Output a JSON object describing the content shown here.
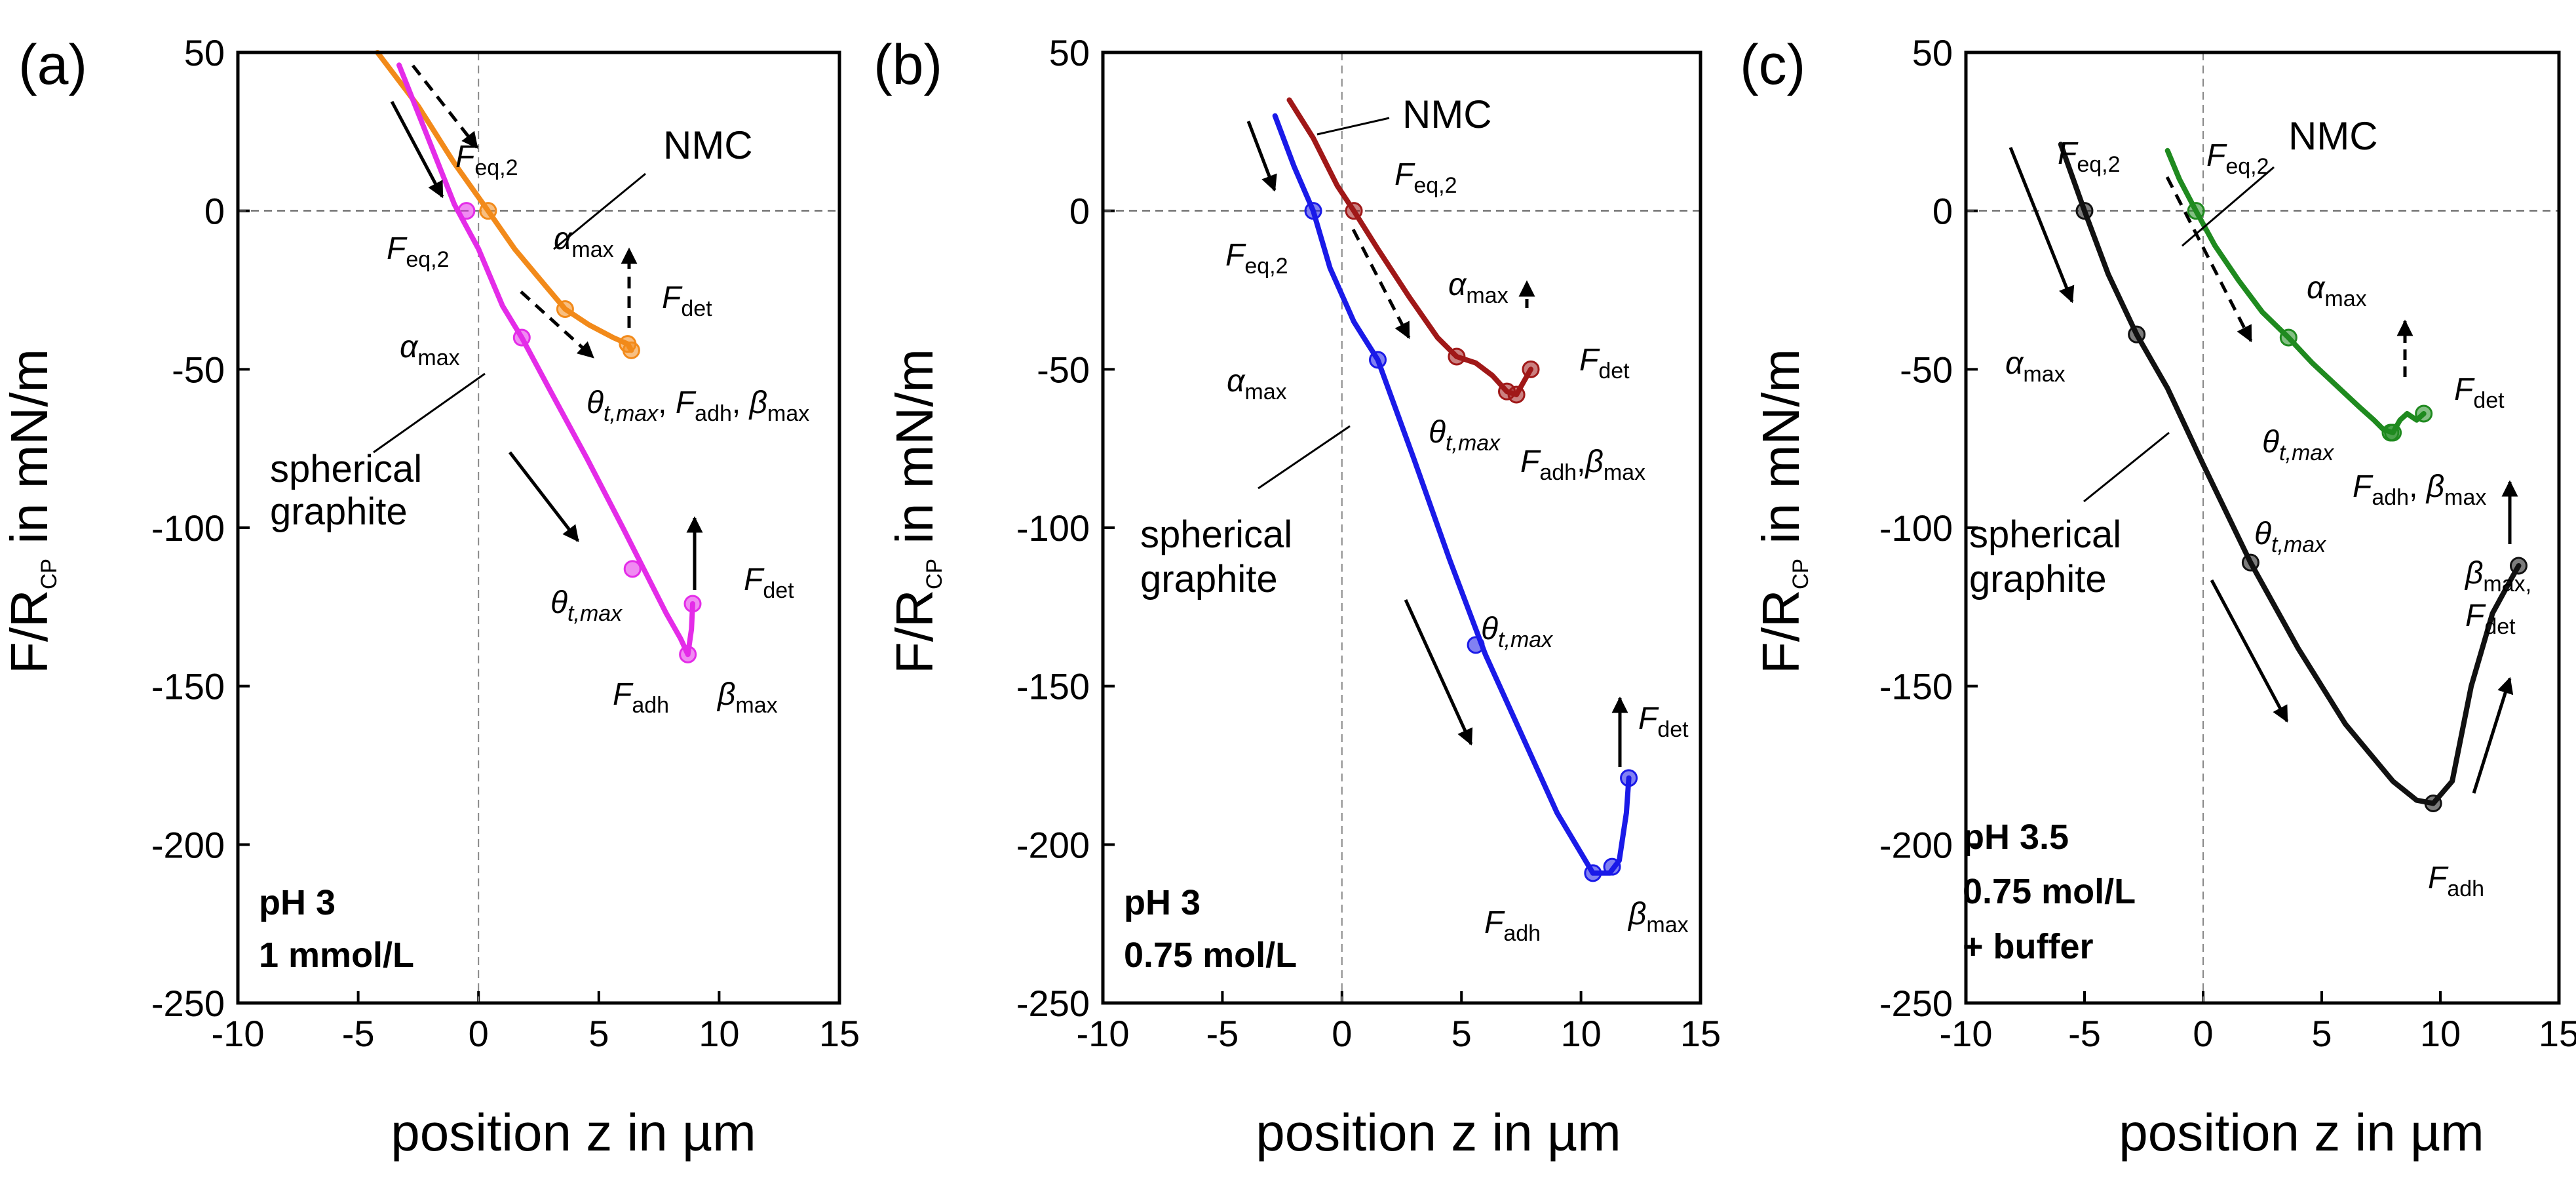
{
  "panels": [
    {
      "letter": "(a)",
      "conditions": [
        "pH 3",
        "1 mmol/L"
      ],
      "labels": {
        "material1": "NMC",
        "material2a": "spherical",
        "material2b": "graphite"
      },
      "colors": {
        "nmc": "#f28a1a",
        "graphite": "#e42ce8",
        "labels": "#e42ce8",
        "nmc_labels": "#f28a1a"
      },
      "nmc_labels": {
        "feq2": "F",
        "feq2_sub": "eq,2",
        "alpha": "α",
        "alpha_sub": "max",
        "fdet": "F",
        "fdet_sub": "det",
        "theta": "θ",
        "theta_sub": "t,max",
        "fadh": "F",
        "fadh_sub": "adh",
        "beta": "β",
        "beta_sub": "max"
      },
      "graphite_labels": {
        "feq2": "F",
        "feq2_sub": "eq,2",
        "alpha": "α",
        "alpha_sub": "max",
        "theta": "θ",
        "theta_sub": "t,max",
        "fdet": "F",
        "fdet_sub": "det",
        "fadh": "F",
        "fadh_sub": "adh",
        "beta": "β",
        "beta_sub": "max"
      }
    },
    {
      "letter": "(b)",
      "conditions": [
        "pH 3",
        "0.75 mol/L"
      ],
      "labels": {
        "material1": "NMC",
        "material2a": "spherical",
        "material2b": "graphite"
      },
      "colors": {
        "nmc": "#a01818",
        "graphite": "#1a1ae8",
        "labels": "#1a1ae8",
        "nmc_labels": "#a01818"
      },
      "nmc_labels": {
        "feq2": "F",
        "feq2_sub": "eq,2",
        "alpha": "α",
        "alpha_sub": "max",
        "fdet": "F",
        "fdet_sub": "det",
        "theta": "θ",
        "theta_sub": "t,max",
        "fadh": "F",
        "fadh_sub": "adh",
        "beta": "β",
        "beta_sub": "max"
      },
      "graphite_labels": {
        "feq2": "F",
        "feq2_sub": "eq,2",
        "alpha": "α",
        "alpha_sub": "max",
        "theta": "θ",
        "theta_sub": "t,max",
        "fdet": "F",
        "fdet_sub": "det",
        "fadh": "F",
        "fadh_sub": "adh",
        "beta": "β",
        "beta_sub": "max"
      }
    },
    {
      "letter": "(c)",
      "conditions": [
        "pH 3.5",
        "0.75 mol/L",
        "+ buffer"
      ],
      "labels": {
        "material1": "NMC",
        "material2a": "spherical",
        "material2b": "graphite"
      },
      "colors": {
        "nmc": "#1f8a1f",
        "graphite": "#111111",
        "labels": "#111111",
        "nmc_labels": "#1f8a1f"
      },
      "nmc_labels": {
        "feq2": "F",
        "feq2_sub": "eq,2",
        "alpha": "α",
        "alpha_sub": "max",
        "fdet": "F",
        "fdet_sub": "det",
        "theta": "θ",
        "theta_sub": "t,max",
        "fadh": "F",
        "fadh_sub": "adh",
        "beta": "β",
        "beta_sub": "max"
      },
      "graphite_labels": {
        "feq2": "F",
        "feq2_sub": "eq,2",
        "alpha": "α",
        "alpha_sub": "max",
        "theta": "θ",
        "theta_sub": "t,max",
        "fdet": "F",
        "fdet_sub": "det",
        "fadh": "F",
        "fadh_sub": "adh",
        "beta": "β",
        "beta_sub": "max,",
        "fdet2": "F",
        "fdet2_sub": "det"
      }
    }
  ],
  "chart_data": [
    {
      "type": "line",
      "title": "(a) pH 3, 1 mmol/L",
      "xlabel": "position z in µm",
      "ylabel": "F/R_CP in mN/m",
      "xlim": [
        -10,
        15
      ],
      "ylim": [
        -250,
        50
      ],
      "xticks": [
        -10,
        -5,
        0,
        5,
        10,
        15
      ],
      "yticks": [
        50,
        0,
        -50,
        -100,
        -150,
        -200,
        -250
      ],
      "series": [
        {
          "name": "NMC",
          "color": "#f28a1a",
          "x": [
            -4.2,
            -2.5,
            -1.0,
            0.4,
            1.5,
            2.6,
            3.6,
            4.6,
            5.6,
            6.2,
            6.35
          ],
          "y": [
            50,
            33,
            15,
            0,
            -12,
            -22,
            -31,
            -36,
            -40,
            -42,
            -44
          ]
        },
        {
          "name": "spherical graphite",
          "color": "#e42ce8",
          "x": [
            -3.3,
            -2.2,
            -1.0,
            0.0,
            1.0,
            1.8,
            3.0,
            4.5,
            6.0,
            7.0,
            7.8,
            8.4,
            8.7,
            8.85,
            8.9
          ],
          "y": [
            46,
            25,
            2,
            -12,
            -30,
            -40,
            -57,
            -78,
            -100,
            -115,
            -127,
            -135,
            -140,
            -132,
            -124
          ]
        }
      ],
      "markers": [
        {
          "series": "NMC",
          "label": "Feq,2",
          "x": 0.4,
          "y": 0
        },
        {
          "series": "NMC",
          "label": "αmax",
          "x": 3.6,
          "y": -31
        },
        {
          "series": "NMC",
          "label": "Fdet",
          "x": 6.2,
          "y": -42
        },
        {
          "series": "NMC",
          "label": "θt,max, Fadh, βmax",
          "x": 6.35,
          "y": -44
        },
        {
          "series": "spherical graphite",
          "label": "Feq,2",
          "x": -0.5,
          "y": 0
        },
        {
          "series": "spherical graphite",
          "label": "αmax",
          "x": 1.8,
          "y": -40
        },
        {
          "series": "spherical graphite",
          "label": "θt,max",
          "x": 6.4,
          "y": -113
        },
        {
          "series": "spherical graphite",
          "label": "Fadh, βmax",
          "x": 8.7,
          "y": -140
        },
        {
          "series": "spherical graphite",
          "label": "Fdet",
          "x": 8.9,
          "y": -124
        }
      ]
    },
    {
      "type": "line",
      "title": "(b) pH 3, 0.75 mol/L",
      "xlabel": "position z in µm",
      "ylabel": "F/R_CP in mN/m",
      "xlim": [
        -10,
        15
      ],
      "ylim": [
        -250,
        50
      ],
      "xticks": [
        -10,
        -5,
        0,
        5,
        10,
        15
      ],
      "yticks": [
        50,
        0,
        -50,
        -100,
        -150,
        -200,
        -250
      ],
      "series": [
        {
          "name": "NMC",
          "color": "#a01818",
          "x": [
            -2.2,
            -1.2,
            -0.2,
            0.5,
            1.5,
            2.8,
            4.0,
            4.8,
            5.6,
            6.3,
            6.9,
            7.3,
            7.6,
            7.9
          ],
          "y": [
            35,
            23,
            8,
            0,
            -12,
            -27,
            -40,
            -46,
            -48,
            -52,
            -57,
            -58,
            -54,
            -50
          ]
        },
        {
          "name": "spherical graphite",
          "color": "#1a1ae8",
          "x": [
            -2.8,
            -2.0,
            -1.2,
            -0.5,
            0.5,
            1.5,
            3.0,
            4.5,
            6.0,
            7.5,
            9.0,
            10.5,
            11.2,
            11.6,
            11.9,
            12.0
          ],
          "y": [
            30,
            14,
            0,
            -18,
            -35,
            -47,
            -78,
            -110,
            -140,
            -165,
            -190,
            -209,
            -209,
            -205,
            -190,
            -179
          ]
        }
      ],
      "markers": [
        {
          "series": "NMC",
          "label": "Feq,2",
          "x": 0.5,
          "y": 0
        },
        {
          "series": "NMC",
          "label": "αmax",
          "x": 4.8,
          "y": -46
        },
        {
          "series": "NMC",
          "label": "Fdet",
          "x": 7.9,
          "y": -50
        },
        {
          "series": "NMC",
          "label": "θt,max",
          "x": 6.9,
          "y": -57
        },
        {
          "series": "NMC",
          "label": "Fadh, βmax",
          "x": 7.3,
          "y": -58
        },
        {
          "series": "spherical graphite",
          "label": "Feq,2",
          "x": -1.2,
          "y": 0
        },
        {
          "series": "spherical graphite",
          "label": "αmax",
          "x": 1.5,
          "y": -47
        },
        {
          "series": "spherical graphite",
          "label": "θt,max",
          "x": 5.6,
          "y": -137
        },
        {
          "series": "spherical graphite",
          "label": "Fadh",
          "x": 10.5,
          "y": -209
        },
        {
          "series": "spherical graphite",
          "label": "βmax",
          "x": 11.3,
          "y": -207
        },
        {
          "series": "spherical graphite",
          "label": "Fdet",
          "x": 12.0,
          "y": -179
        }
      ]
    },
    {
      "type": "line",
      "title": "(c) pH 3.5, 0.75 mol/L + buffer",
      "xlabel": "position z in µm",
      "ylabel": "F/R_CP in mN/m",
      "xlim": [
        -10,
        15
      ],
      "ylim": [
        -250,
        50
      ],
      "xticks": [
        -10,
        -5,
        0,
        5,
        10,
        15
      ],
      "yticks": [
        50,
        0,
        -50,
        -100,
        -150,
        -200,
        -250
      ],
      "series": [
        {
          "name": "NMC",
          "color": "#1f8a1f",
          "x": [
            -1.5,
            -1.0,
            -0.3,
            0.5,
            1.5,
            2.5,
            3.6,
            4.6,
            5.6,
            6.6,
            7.2,
            7.6,
            8.0,
            8.3,
            8.6,
            9.0,
            9.3
          ],
          "y": [
            19,
            10,
            0,
            -11,
            -22,
            -32,
            -40,
            -48,
            -55,
            -62,
            -66,
            -69,
            -70,
            -66,
            -64,
            -66,
            -64
          ]
        },
        {
          "name": "spherical graphite",
          "color": "#111111",
          "x": [
            -6.0,
            -5.0,
            -4.0,
            -2.8,
            -1.5,
            0.0,
            2.0,
            4.0,
            6.0,
            8.0,
            9.0,
            9.7,
            10.5,
            11.3,
            12.2,
            13.0,
            13.3
          ],
          "y": [
            21,
            0,
            -20,
            -39,
            -56,
            -80,
            -111,
            -138,
            -162,
            -180,
            -186,
            -187,
            -180,
            -150,
            -127,
            -116,
            -112
          ]
        }
      ],
      "markers": [
        {
          "series": "NMC",
          "label": "Feq,2",
          "x": -0.3,
          "y": 0
        },
        {
          "series": "NMC",
          "label": "αmax",
          "x": 3.6,
          "y": -40
        },
        {
          "series": "NMC",
          "label": "Fdet",
          "x": 9.3,
          "y": -64
        },
        {
          "series": "NMC",
          "label": "θt,max",
          "x": 7.9,
          "y": -70
        },
        {
          "series": "NMC",
          "label": "Fadh, βmax",
          "x": 8.0,
          "y": -70
        },
        {
          "series": "spherical graphite",
          "label": "Feq,2",
          "x": -5.0,
          "y": 0
        },
        {
          "series": "spherical graphite",
          "label": "αmax",
          "x": -2.8,
          "y": -39
        },
        {
          "series": "spherical graphite",
          "label": "θt,max",
          "x": 2.0,
          "y": -111
        },
        {
          "series": "spherical graphite",
          "label": "Fadh",
          "x": 9.7,
          "y": -187
        },
        {
          "series": "spherical graphite",
          "label": "βmax, Fdet",
          "x": 13.3,
          "y": -112
        }
      ]
    }
  ]
}
